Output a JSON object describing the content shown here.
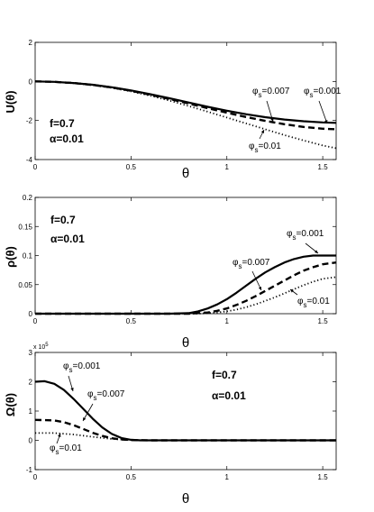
{
  "chart_data": [
    {
      "type": "line",
      "ylabel": "U(θ)",
      "xlabel": "θ",
      "xlim": [
        0,
        1.57
      ],
      "ylim": [
        -4,
        2
      ],
      "xticks": [
        0,
        0.5,
        1,
        1.5
      ],
      "xtick_labels": [
        "0",
        "0.5",
        "1",
        "1.5"
      ],
      "yticks": [
        -4,
        -2,
        0,
        2
      ],
      "ytick_labels": [
        "-4",
        "-2",
        "0",
        "2"
      ],
      "params": [
        "f=0.7",
        "α=0.01"
      ],
      "series": [
        {
          "name": "φs=0.001",
          "style": "solid",
          "x": [
            0,
            0.1,
            0.2,
            0.3,
            0.4,
            0.5,
            0.6,
            0.7,
            0.8,
            0.9,
            1.0,
            1.1,
            1.2,
            1.3,
            1.4,
            1.5,
            1.57
          ],
          "y": [
            0,
            -0.02,
            -0.08,
            -0.17,
            -0.3,
            -0.46,
            -0.65,
            -0.86,
            -1.08,
            -1.3,
            -1.5,
            -1.68,
            -1.83,
            -1.95,
            -2.04,
            -2.1,
            -2.12
          ]
        },
        {
          "name": "φs=0.007",
          "style": "dashed",
          "x": [
            0,
            0.1,
            0.2,
            0.3,
            0.4,
            0.5,
            0.6,
            0.7,
            0.8,
            0.9,
            1.0,
            1.1,
            1.2,
            1.3,
            1.4,
            1.5,
            1.57
          ],
          "y": [
            0,
            -0.02,
            -0.08,
            -0.18,
            -0.31,
            -0.48,
            -0.68,
            -0.9,
            -1.13,
            -1.37,
            -1.6,
            -1.82,
            -2.02,
            -2.19,
            -2.33,
            -2.42,
            -2.45
          ]
        },
        {
          "name": "φs=0.01",
          "style": "dotted",
          "x": [
            0,
            0.1,
            0.2,
            0.3,
            0.4,
            0.5,
            0.6,
            0.7,
            0.8,
            0.9,
            1.0,
            1.1,
            1.2,
            1.3,
            1.4,
            1.5,
            1.57
          ],
          "y": [
            0,
            -0.02,
            -0.09,
            -0.19,
            -0.33,
            -0.51,
            -0.73,
            -0.98,
            -1.26,
            -1.55,
            -1.85,
            -2.15,
            -2.45,
            -2.75,
            -3.02,
            -3.28,
            -3.42
          ]
        }
      ],
      "annotations": [
        {
          "label": "φs=0.007"
        },
        {
          "label": "φs=0.001"
        },
        {
          "label": "φs=0.01"
        }
      ]
    },
    {
      "type": "line",
      "ylabel": "ρ(θ)",
      "xlabel": "θ",
      "xlim": [
        0,
        1.57
      ],
      "ylim": [
        0,
        0.2
      ],
      "xticks": [
        0,
        0.5,
        1,
        1.5
      ],
      "xtick_labels": [
        "0",
        "0.5",
        "1",
        "1.5"
      ],
      "yticks": [
        0,
        0.05,
        0.1,
        0.15,
        0.2
      ],
      "ytick_labels": [
        "0",
        "0.05",
        "0.1",
        "0.15",
        "0.2"
      ],
      "params": [
        "f=0.7",
        "α=0.01"
      ],
      "series": [
        {
          "name": "φs=0.001",
          "style": "solid",
          "x": [
            0,
            0.7,
            0.8,
            0.85,
            0.9,
            0.95,
            1.0,
            1.05,
            1.1,
            1.15,
            1.2,
            1.25,
            1.3,
            1.35,
            1.4,
            1.45,
            1.5,
            1.57
          ],
          "y": [
            0,
            0,
            0.001,
            0.004,
            0.009,
            0.016,
            0.025,
            0.036,
            0.048,
            0.06,
            0.071,
            0.08,
            0.088,
            0.094,
            0.098,
            0.1,
            0.1,
            0.1
          ]
        },
        {
          "name": "φs=0.007",
          "style": "dashed",
          "x": [
            0,
            0.8,
            0.9,
            0.95,
            1.0,
            1.05,
            1.1,
            1.15,
            1.2,
            1.25,
            1.3,
            1.35,
            1.4,
            1.45,
            1.5,
            1.57
          ],
          "y": [
            0,
            0,
            0.002,
            0.005,
            0.009,
            0.015,
            0.022,
            0.03,
            0.039,
            0.048,
            0.057,
            0.066,
            0.074,
            0.08,
            0.085,
            0.088
          ]
        },
        {
          "name": "φs=0.01",
          "style": "dotted",
          "x": [
            0,
            0.85,
            0.95,
            1.0,
            1.05,
            1.1,
            1.15,
            1.2,
            1.25,
            1.3,
            1.35,
            1.4,
            1.45,
            1.5,
            1.57
          ],
          "y": [
            0,
            0,
            0.002,
            0.004,
            0.007,
            0.011,
            0.016,
            0.022,
            0.028,
            0.035,
            0.042,
            0.049,
            0.055,
            0.06,
            0.063
          ]
        }
      ],
      "annotations": [
        {
          "label": "φs=0.001"
        },
        {
          "label": "φs=0.007"
        },
        {
          "label": "φs=0.01"
        }
      ]
    },
    {
      "type": "line",
      "ylabel": "Ω(θ)",
      "xlabel": "θ",
      "xlim": [
        0,
        1.57
      ],
      "ylim": [
        -1,
        3
      ],
      "y_multiplier": "x 10",
      "y_multiplier_exp": "5",
      "xticks": [
        0,
        0.5,
        1,
        1.5
      ],
      "xtick_labels": [
        "0",
        "0.5",
        "1",
        "1.5"
      ],
      "yticks": [
        -1,
        0,
        1,
        2,
        3
      ],
      "ytick_labels": [
        "-1",
        "0",
        "1",
        "2",
        "3"
      ],
      "params": [
        "f=0.7",
        "α=0.01"
      ],
      "series": [
        {
          "name": "φs=0.001",
          "style": "solid",
          "x": [
            0,
            0.05,
            0.1,
            0.15,
            0.2,
            0.25,
            0.3,
            0.35,
            0.4,
            0.45,
            0.5,
            0.55,
            0.6,
            0.7,
            1.0,
            1.57
          ],
          "y": [
            2.0,
            2.02,
            1.93,
            1.72,
            1.42,
            1.08,
            0.74,
            0.44,
            0.22,
            0.08,
            0.02,
            0.0,
            0.0,
            0.0,
            0.0,
            0.0
          ]
        },
        {
          "name": "φs=0.007",
          "style": "dashed",
          "x": [
            0,
            0.1,
            0.15,
            0.2,
            0.25,
            0.3,
            0.35,
            0.4,
            0.45,
            0.5,
            0.6,
            1.0,
            1.57
          ],
          "y": [
            0.7,
            0.68,
            0.62,
            0.52,
            0.39,
            0.26,
            0.15,
            0.07,
            0.03,
            0.01,
            0.0,
            0.0,
            0.0
          ]
        },
        {
          "name": "φs=0.01",
          "style": "dotted",
          "x": [
            0,
            0.1,
            0.2,
            0.3,
            0.4,
            0.5,
            0.6,
            1.0,
            1.57
          ],
          "y": [
            0.25,
            0.25,
            0.2,
            0.12,
            0.05,
            0.01,
            0.0,
            0.0,
            0.0
          ]
        }
      ],
      "annotations": [
        {
          "label": "φs=0.001"
        },
        {
          "label": "φs=0.007"
        },
        {
          "label": "φs=0.01"
        }
      ]
    }
  ]
}
